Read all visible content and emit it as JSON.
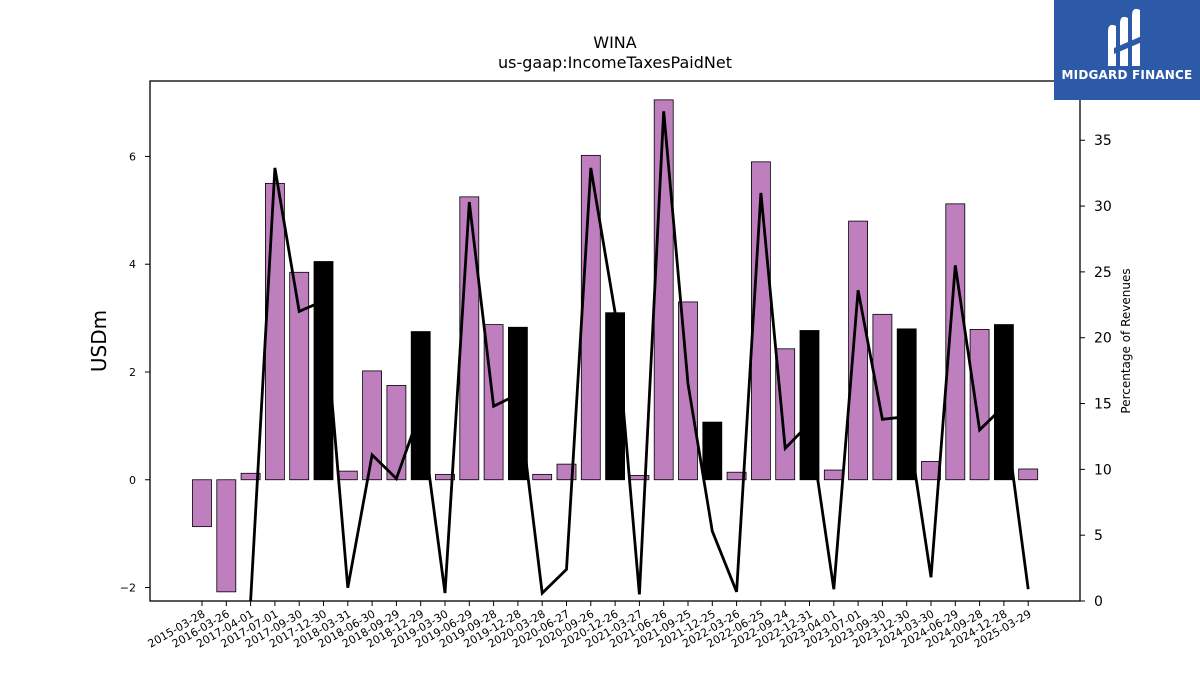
{
  "chart_data": {
    "type": "bar",
    "title": "WINA",
    "subtitle": "us-gaap:IncomeTaxesPaidNet",
    "ylabel": "USDm",
    "ylabel_right": "Percentage of Revenues",
    "ylim": [
      -2.25,
      7.4
    ],
    "ylim_right": [
      0,
      39.5
    ],
    "yticks": [
      -2,
      0,
      2,
      4,
      6
    ],
    "yticks_right": [
      0,
      5,
      10,
      15,
      20,
      25,
      30,
      35
    ],
    "categories": [
      "2015-03-28",
      "2016-03-26",
      "2017-04-01",
      "2017-07-01",
      "2017-09-30",
      "2017-12-30",
      "2018-03-31",
      "2018-06-30",
      "2018-09-29",
      "2018-12-29",
      "2019-03-30",
      "2019-06-29",
      "2019-09-28",
      "2019-12-28",
      "2020-03-28",
      "2020-06-27",
      "2020-09-26",
      "2020-12-26",
      "2021-03-27",
      "2021-06-26",
      "2021-09-25",
      "2021-12-25",
      "2022-03-26",
      "2022-06-25",
      "2022-09-24",
      "2022-12-31",
      "2023-04-01",
      "2023-07-01",
      "2023-09-30",
      "2023-12-30",
      "2024-03-30",
      "2024-06-29",
      "2024-09-28",
      "2024-12-28",
      "2025-03-29"
    ],
    "series": [
      {
        "values": [
          -0.87,
          -2.08,
          0.12,
          5.5,
          3.85,
          4.05,
          0.16,
          2.02,
          1.75,
          2.75,
          0.1,
          5.25,
          2.88,
          2.83,
          0.1,
          0.29,
          6.02,
          3.1,
          0.08,
          7.05,
          3.3,
          1.07,
          0.14,
          5.9,
          2.43,
          2.77,
          0.18,
          4.8,
          3.07,
          2.8,
          0.34,
          5.12,
          2.79,
          2.88,
          0.2
        ],
        "highlight": [
          false,
          false,
          false,
          false,
          false,
          true,
          false,
          false,
          false,
          true,
          false,
          false,
          false,
          true,
          false,
          false,
          false,
          true,
          false,
          false,
          false,
          true,
          false,
          false,
          false,
          true,
          false,
          false,
          false,
          true,
          false,
          false,
          false,
          true,
          false
        ]
      },
      {
        "type": "line",
        "values": [
          null,
          null,
          0.0,
          32.9,
          22.0,
          22.8,
          1.0,
          11.1,
          9.3,
          14.5,
          0.6,
          30.3,
          14.8,
          15.7,
          0.6,
          2.4,
          32.9,
          21.9,
          0.5,
          37.2,
          16.5,
          5.3,
          0.7,
          31.0,
          11.6,
          13.5,
          0.9,
          23.6,
          13.8,
          14.0,
          1.8,
          25.5,
          13.0,
          14.8,
          0.9
        ]
      }
    ],
    "colors": {
      "bar": "#bf7fbf",
      "highlight": "#000000",
      "line": "#000000"
    }
  },
  "logo": {
    "text": "MIDGARD FINANCE",
    "bg": "#2c5aa8"
  }
}
